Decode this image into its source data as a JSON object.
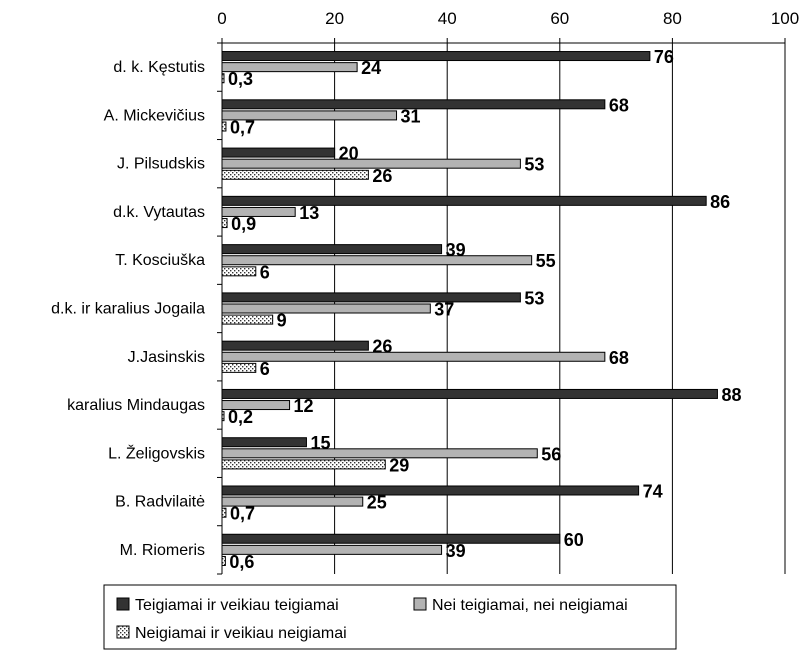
{
  "chart_data": {
    "type": "bar",
    "orientation": "horizontal",
    "categories": [
      "d. k. Kęstutis",
      "A. Mickevičius",
      "J. Pilsudskis",
      "d.k. Vytautas",
      "T. Kosciuška",
      "d.k. ir karalius Jogaila",
      "J.Jasinskis",
      "karalius Mindaugas",
      "L. Želigovskis",
      "B. Radvilaitė",
      "M. Riomeris"
    ],
    "series": [
      {
        "name": "Teigiamai ir veikiau teigiamai",
        "color": "#333333",
        "values": [
          76,
          68,
          20,
          86,
          39,
          53,
          26,
          88,
          15,
          74,
          60
        ],
        "labels": [
          "76",
          "68",
          "20",
          "86",
          "39",
          "53",
          "26",
          "88",
          "15",
          "74",
          "60"
        ]
      },
      {
        "name": "Nei teigiamai, nei neigiamai",
        "color": "#b3b3b3",
        "values": [
          24,
          31,
          53,
          13,
          55,
          37,
          68,
          12,
          56,
          25,
          39
        ],
        "labels": [
          "24",
          "31",
          "53",
          "13",
          "55",
          "37",
          "68",
          "12",
          "56",
          "25",
          "39"
        ]
      },
      {
        "name": "Neigiamai ir veikiau neigiamai",
        "color": "dotted",
        "values": [
          0.3,
          0.7,
          26,
          0.9,
          6,
          9,
          6,
          0.2,
          29,
          0.7,
          0.6
        ],
        "labels": [
          "0,3",
          "0,7",
          "26",
          "0,9",
          "6",
          "9",
          "6",
          "0,2",
          "29",
          "0,7",
          "0,6"
        ]
      }
    ],
    "xlim": [
      0,
      100
    ],
    "xticks": [
      0,
      20,
      40,
      60,
      80,
      100
    ],
    "xtick_labels": [
      "0",
      "20",
      "40",
      "60",
      "80",
      "100"
    ],
    "grid": true,
    "axis_position": "top",
    "legend_position": "bottom",
    "title": "",
    "xlabel": "",
    "ylabel": ""
  }
}
